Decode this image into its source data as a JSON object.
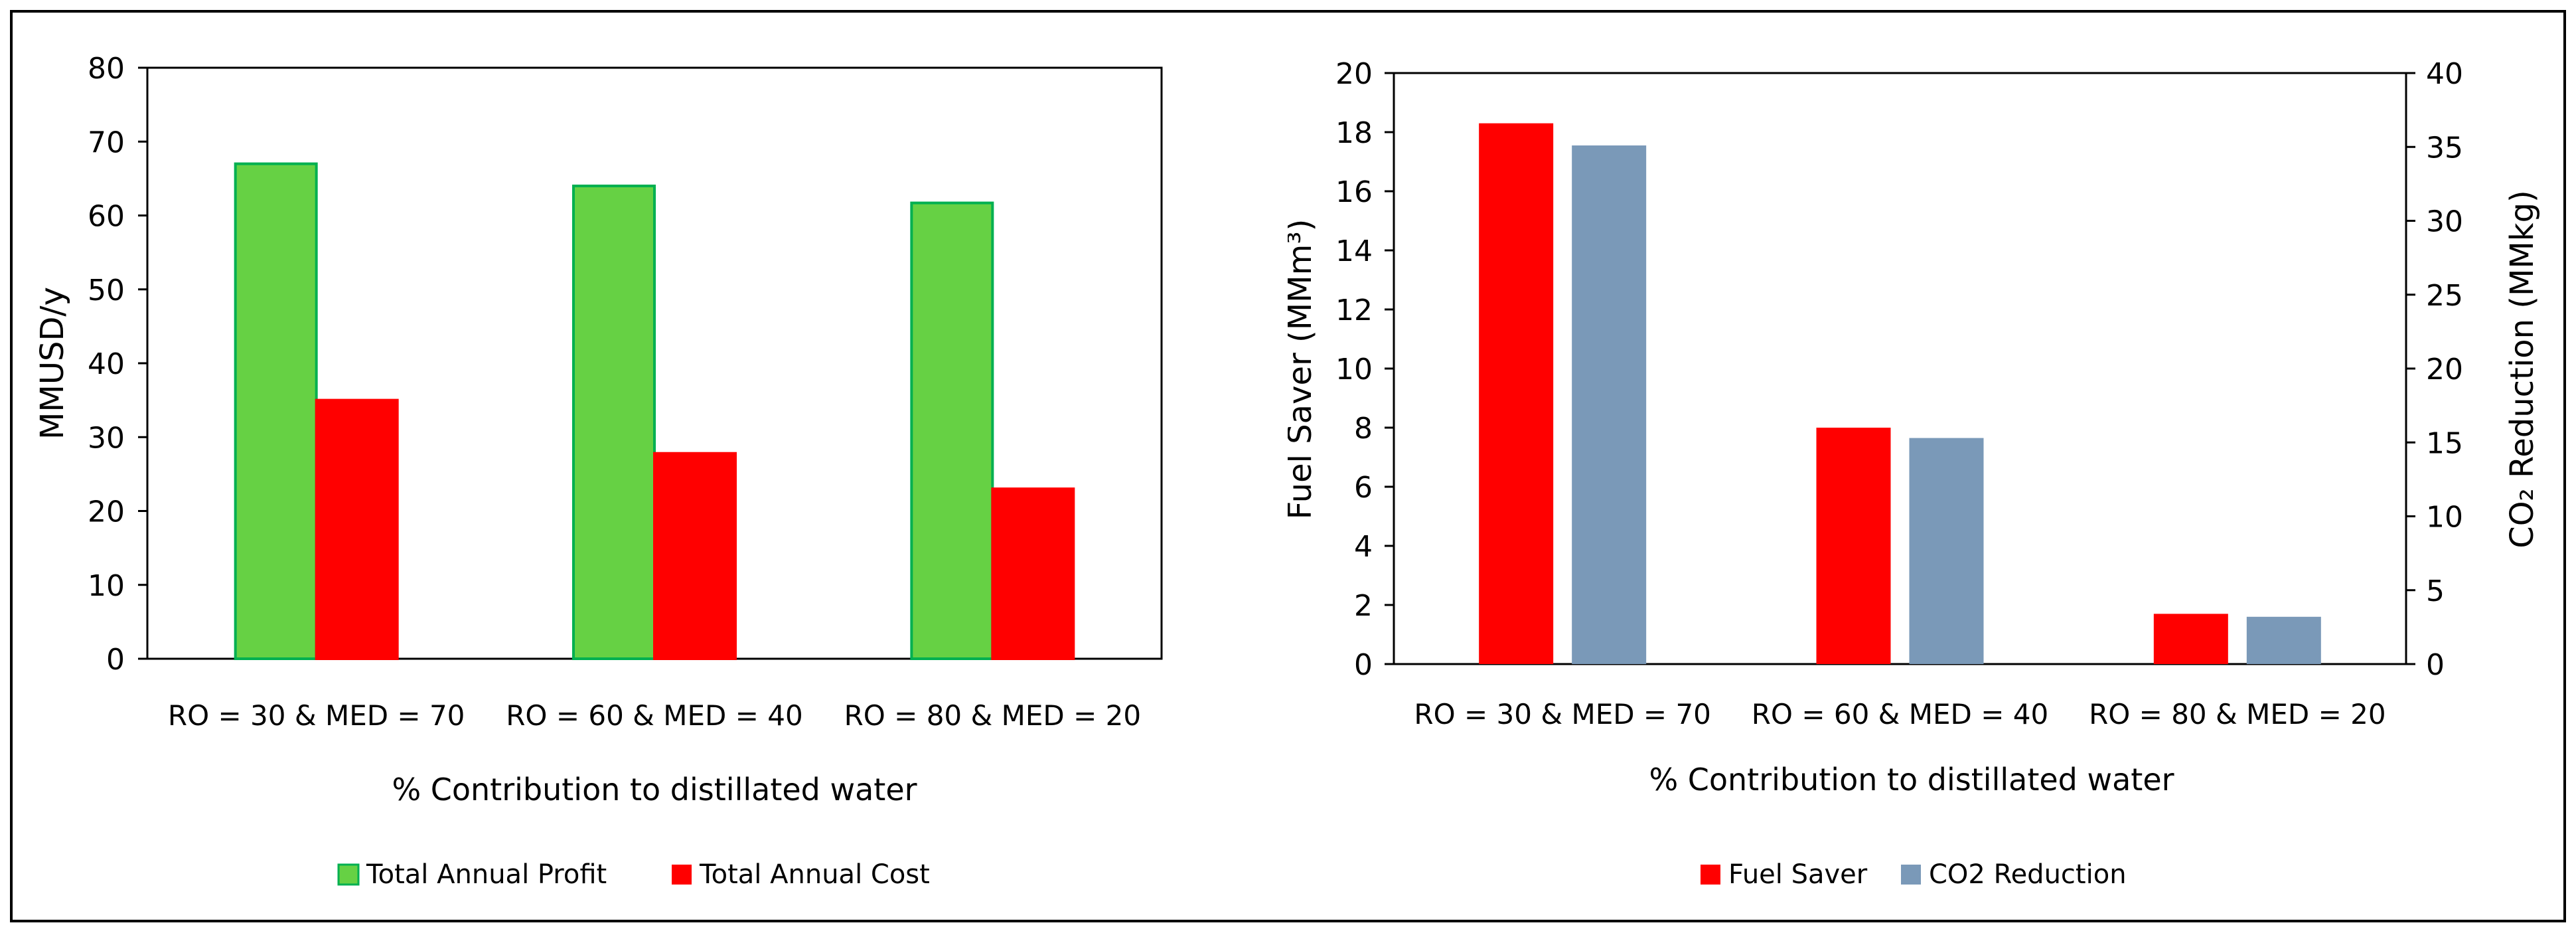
{
  "chart_data": [
    {
      "type": "bar",
      "title": "",
      "categories": [
        "RO = 30 & MED = 70",
        "RO = 60 & MED = 40",
        "RO = 80 & MED = 20"
      ],
      "series": [
        {
          "name": "Total Annual Profit",
          "values": [
            67,
            64,
            61.7
          ],
          "color": "#66d144",
          "stroke": "#00b050"
        },
        {
          "name": "Total Annual Cost",
          "values": [
            35,
            27.8,
            23
          ],
          "color": "#ff0000",
          "stroke": "#ff0000"
        }
      ],
      "xlabel": "% Contribution to distillated water",
      "ylabel": "MMUSD/y",
      "ylim": [
        0,
        80
      ],
      "yticks": [
        "0",
        "10",
        "20",
        "30",
        "40",
        "50",
        "60",
        "70",
        "80"
      ],
      "grid": false,
      "legend": "bottom"
    },
    {
      "type": "bar",
      "title": "",
      "categories": [
        "RO = 30 & MED = 70",
        "RO = 60 & MED = 40",
        "RO = 80 & MED = 20"
      ],
      "series": [
        {
          "name": "Fuel Saver",
          "axis": "left",
          "values": [
            18.3,
            8,
            1.7
          ],
          "color": "#ff0000"
        },
        {
          "name": "CO2 Reduction",
          "axis": "right",
          "values": [
            35.1,
            15.3,
            3.2
          ],
          "color": "#7a99b8"
        }
      ],
      "xlabel": "% Contribution to distillated water",
      "ylabel": "Fuel Saver (MMm³)",
      "ylabel_right": "CO₂ Reduction (MMkg)",
      "ylim": [
        0,
        20
      ],
      "ylim_right": [
        0,
        40
      ],
      "yticks": [
        "0",
        "2",
        "4",
        "6",
        "8",
        "10",
        "12",
        "14",
        "16",
        "18",
        "20"
      ],
      "yticks_right": [
        "0",
        "5",
        "10",
        "15",
        "20",
        "25",
        "30",
        "35",
        "40"
      ],
      "grid": false,
      "legend": "bottom"
    }
  ]
}
